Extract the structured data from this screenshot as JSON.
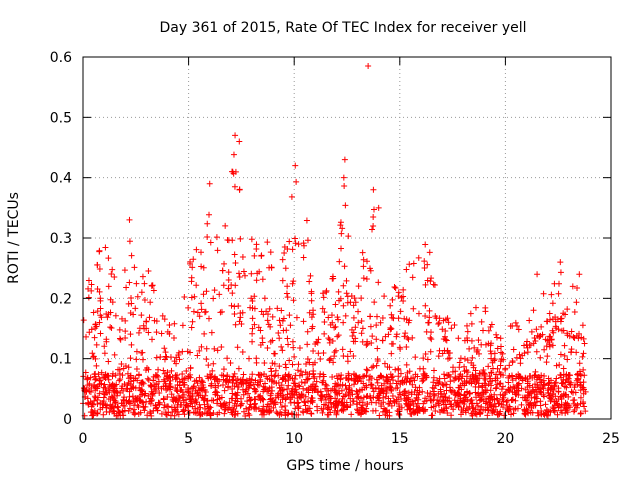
{
  "chart_data": {
    "type": "scatter",
    "title": "Day 361 of 2015, Rate Of TEC Index for receiver yell",
    "xlabel": "GPS time / hours",
    "ylabel": "ROTI / TECUs",
    "xlim": [
      0,
      25
    ],
    "ylim": [
      0,
      0.6
    ],
    "x_ticks": [
      0,
      5,
      10,
      15,
      20,
      25
    ],
    "y_ticks": [
      0,
      0.1,
      0.2,
      0.3,
      0.4,
      0.5,
      0.6
    ],
    "x_tick_labels": [
      "0",
      "5",
      "10",
      "15",
      "20",
      "25"
    ],
    "y_tick_labels": [
      "0",
      "0.1",
      "0.2",
      "0.3",
      "0.4",
      "0.5",
      "0.6"
    ],
    "grid": true,
    "marker": "+",
    "marker_color": "#ff0000",
    "series": [
      {
        "name": "ROTI",
        "x_range_hours": [
          0,
          23.8
        ],
        "baseline_values": [
          0.0,
          0.1
        ],
        "envelope": [
          [
            0.0,
            0.22
          ],
          [
            0.5,
            0.24
          ],
          [
            0.8,
            0.3
          ],
          [
            1.2,
            0.28
          ],
          [
            1.6,
            0.22
          ],
          [
            2.0,
            0.26
          ],
          [
            2.2,
            0.33
          ],
          [
            2.6,
            0.22
          ],
          [
            3.0,
            0.26
          ],
          [
            3.5,
            0.2
          ],
          [
            4.0,
            0.17
          ],
          [
            4.5,
            0.16
          ],
          [
            5.0,
            0.26
          ],
          [
            5.5,
            0.3
          ],
          [
            5.9,
            0.39
          ],
          [
            6.3,
            0.3
          ],
          [
            6.8,
            0.33
          ],
          [
            7.2,
            0.47
          ],
          [
            7.6,
            0.32
          ],
          [
            8.0,
            0.3
          ],
          [
            8.5,
            0.29
          ],
          [
            9.0,
            0.3
          ],
          [
            9.5,
            0.32
          ],
          [
            10.0,
            0.42
          ],
          [
            10.4,
            0.38
          ],
          [
            11.0,
            0.23
          ],
          [
            11.5,
            0.22
          ],
          [
            12.0,
            0.25
          ],
          [
            12.3,
            0.43
          ],
          [
            12.8,
            0.22
          ],
          [
            13.2,
            0.28
          ],
          [
            13.5,
            0.3
          ],
          [
            13.8,
            0.38
          ],
          [
            14.2,
            0.24
          ],
          [
            14.6,
            0.22
          ],
          [
            15.0,
            0.27
          ],
          [
            15.5,
            0.26
          ],
          [
            16.0,
            0.3
          ],
          [
            16.3,
            0.31
          ],
          [
            16.8,
            0.2
          ],
          [
            17.5,
            0.16
          ],
          [
            18.0,
            0.17
          ],
          [
            18.6,
            0.2
          ],
          [
            19.0,
            0.22
          ],
          [
            19.5,
            0.15
          ],
          [
            20.0,
            0.15
          ],
          [
            20.5,
            0.16
          ],
          [
            21.0,
            0.18
          ],
          [
            21.5,
            0.22
          ],
          [
            22.0,
            0.2
          ],
          [
            22.5,
            0.26
          ],
          [
            23.0,
            0.22
          ],
          [
            23.5,
            0.24
          ],
          [
            23.8,
            0.15
          ]
        ],
        "outliers": [
          [
            13.5,
            0.585
          ],
          [
            7.2,
            0.47
          ],
          [
            7.4,
            0.46
          ],
          [
            10.05,
            0.42
          ],
          [
            12.4,
            0.43
          ],
          [
            12.35,
            0.4
          ],
          [
            6.0,
            0.39
          ],
          [
            13.75,
            0.38
          ],
          [
            14.0,
            0.35
          ],
          [
            22.6,
            0.26
          ],
          [
            21.5,
            0.24
          ],
          [
            2.2,
            0.33
          ],
          [
            23.5,
            0.24
          ]
        ]
      }
    ]
  }
}
